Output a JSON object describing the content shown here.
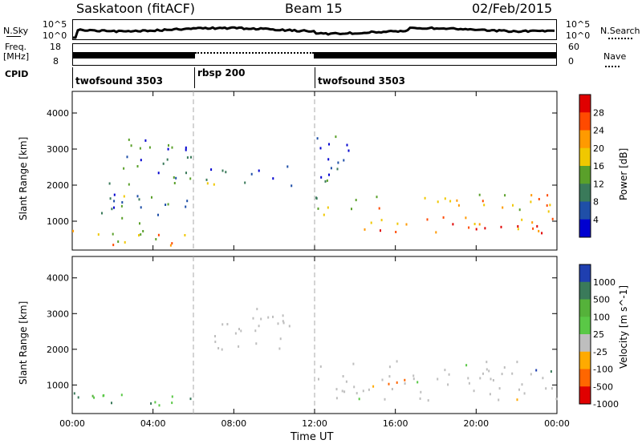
{
  "header": {
    "station": "Saskatoon (fitACF)",
    "beam": "Beam 15",
    "date": "02/Feb/2015"
  },
  "noise_panel": {
    "left_label": "N.Sky",
    "right_label": "N.Search",
    "left_ticks": [
      "10^5",
      "10^0"
    ],
    "right_ticks": [
      "10^5",
      "10^0"
    ]
  },
  "freq_panel": {
    "left_label_1": "Freq.",
    "left_label_2": "[MHz]",
    "right_label": "Nave",
    "left_ticks": [
      "18",
      "8"
    ],
    "right_ticks": [
      "60",
      "0"
    ]
  },
  "cpid": {
    "label": "CPID",
    "segments": [
      {
        "name": "twofsound 3503",
        "start": 0,
        "end": 6
      },
      {
        "name": "rbsp 200",
        "start": 6,
        "end": 12
      },
      {
        "name": "twofsound 3503",
        "start": 12,
        "end": 24
      }
    ]
  },
  "time_axis": {
    "xlabel": "Time UT",
    "ticks": [
      "00:00",
      "04:00",
      "08:00",
      "12:00",
      "16:00",
      "20:00",
      "00:00"
    ]
  },
  "chart_data": [
    {
      "type": "heatmap",
      "panel": "Power",
      "ylabel": "Slant Range [km]",
      "xlim": [
        0,
        24
      ],
      "ylim": [
        200,
        4600
      ],
      "yticks": [
        1000,
        2000,
        3000,
        4000
      ],
      "colorbar": {
        "label": "Power [dB]",
        "ticks": [
          "28",
          "24",
          "20",
          "16",
          "12",
          "8",
          "4"
        ],
        "colors": [
          "#e00000",
          "#ff4a00",
          "#ff9a00",
          "#f0c800",
          "#5aa02a",
          "#3a7a5a",
          "#1f4fa8",
          "#0000d0"
        ]
      },
      "regions": [
        {
          "desc": "low range band 00-06",
          "t0": 0,
          "t1": 6,
          "r0": 300,
          "r1": 800,
          "level": "high"
        },
        {
          "desc": "rising arc 01-04",
          "t0": 1.3,
          "t1": 3.5,
          "r0": 900,
          "r1": 2200,
          "level": "mid"
        },
        {
          "desc": "scattered 03-06",
          "t0": 2.5,
          "t1": 6,
          "r0": 1200,
          "r1": 3300,
          "level": "mid"
        },
        {
          "desc": "band 07-11",
          "t0": 6.5,
          "t1": 11,
          "r0": 2000,
          "r1": 2600,
          "level": "mid"
        },
        {
          "desc": "peak 12-13.5",
          "t0": 11.8,
          "t1": 13.8,
          "r0": 1200,
          "r1": 3500,
          "level": "mid"
        },
        {
          "desc": "band 14-24",
          "t0": 14,
          "t1": 24,
          "r0": 700,
          "r1": 1800,
          "level": "high"
        }
      ]
    },
    {
      "type": "heatmap",
      "panel": "Velocity",
      "ylabel": "Slant Range [km]",
      "xlim": [
        0,
        24
      ],
      "ylim": [
        200,
        4600
      ],
      "yticks": [
        1000,
        2000,
        3000,
        4000
      ],
      "colorbar": {
        "label": "Velocity [m s^-1]",
        "ticks": [
          "1000",
          "500",
          "100",
          "25",
          "-25",
          "-100",
          "-500",
          "-1000"
        ],
        "colors": [
          "#1f3fb0",
          "#3a7a5a",
          "#55b23a",
          "#5ac846",
          "#bebebe",
          "#ffaa00",
          "#ff6600",
          "#e00000"
        ]
      },
      "regions": [
        {
          "desc": "green band 00-06",
          "t0": 0,
          "t1": 6,
          "r0": 300,
          "r1": 800,
          "level": "positive"
        },
        {
          "desc": "grey arc 07-11",
          "t0": 6.5,
          "t1": 11,
          "r0": 2000,
          "r1": 3200,
          "level": "zero"
        },
        {
          "desc": "grey 12-24",
          "t0": 12,
          "t1": 24,
          "r0": 600,
          "r1": 1700,
          "level": "zero"
        },
        {
          "desc": "orange 15-16",
          "t0": 14.5,
          "t1": 16.5,
          "r0": 800,
          "r1": 1200,
          "level": "negative"
        }
      ]
    }
  ]
}
